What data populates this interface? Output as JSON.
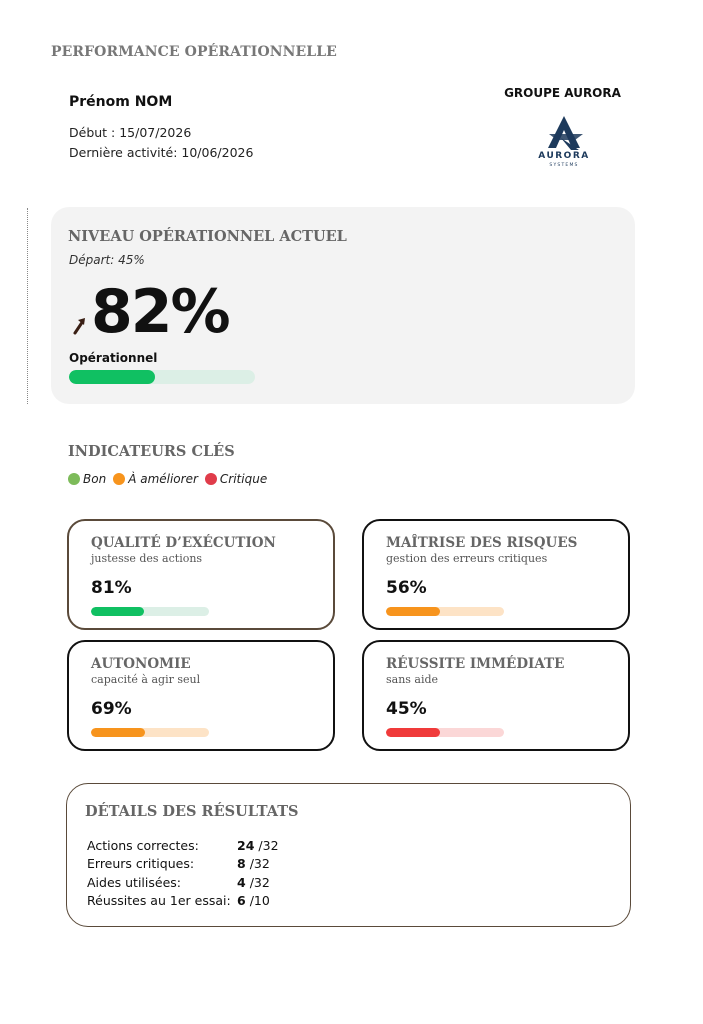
{
  "header": {
    "title": "PERFORMANCE OPÉRATIONNELLE",
    "user_name": "Prénom NOM",
    "start_line": "Début : 15/07/2026",
    "last_activity_line": "Dernière activité: 10/06/2026"
  },
  "company": {
    "name": "GROUPE AURORA",
    "logo_name": "AURORA",
    "logo_sub": "SYSTEMS",
    "logo_color": "#1d3a5c"
  },
  "level": {
    "title": "NIVEAU OPÉRATIONNEL ACTUEL",
    "start": "Départ: 45%",
    "value": "82%",
    "label": "Opérationnel",
    "progress": 0.46,
    "trend_icon": "arrow-up-right-icon",
    "fill_color": "#10c062",
    "track_color": "#dcefe6"
  },
  "indicators": {
    "title": "INDICATEURS CLÉS",
    "legend": [
      {
        "label": "Bon",
        "color": "#7dbb5a"
      },
      {
        "label": "À améliorer",
        "color": "#f7941d"
      },
      {
        "label": "Critique",
        "color": "#e03c4a"
      }
    ],
    "items": [
      {
        "title": "QUALITÉ D’EXÉCUTION",
        "subtitle": "justesse des actions",
        "value": "81%",
        "progress": 0.45,
        "fill": "#10c062",
        "track": "#dcefe6",
        "border": "brown"
      },
      {
        "title": "MAÎTRISE DES RISQUES",
        "subtitle": "gestion des erreurs critiques",
        "value": "56%",
        "progress": 0.46,
        "fill": "#f7941d",
        "track": "#fde3c6",
        "border": "black"
      },
      {
        "title": "AUTONOMIE",
        "subtitle": "capacité à agir seul",
        "value": "69%",
        "progress": 0.46,
        "fill": "#f7941d",
        "track": "#fde3c6",
        "border": "black"
      },
      {
        "title": "RÉUSSITE IMMÉDIATE",
        "subtitle": "sans aide",
        "value": "45%",
        "progress": 0.46,
        "fill": "#f03a3a",
        "track": "#fbd7d7",
        "border": "black"
      }
    ]
  },
  "details": {
    "title": "DÉTAILS DES RÉSULTATS",
    "rows": [
      {
        "label": "Actions correctes:",
        "value": "24",
        "total": "/32"
      },
      {
        "label": "Erreurs critiques:",
        "value": "8",
        "total": "/32"
      },
      {
        "label": "Aides utilisées:",
        "value": "4",
        "total": "/32"
      },
      {
        "label": "Réussites au 1er essai:",
        "value": "6",
        "total": "/10"
      }
    ]
  }
}
